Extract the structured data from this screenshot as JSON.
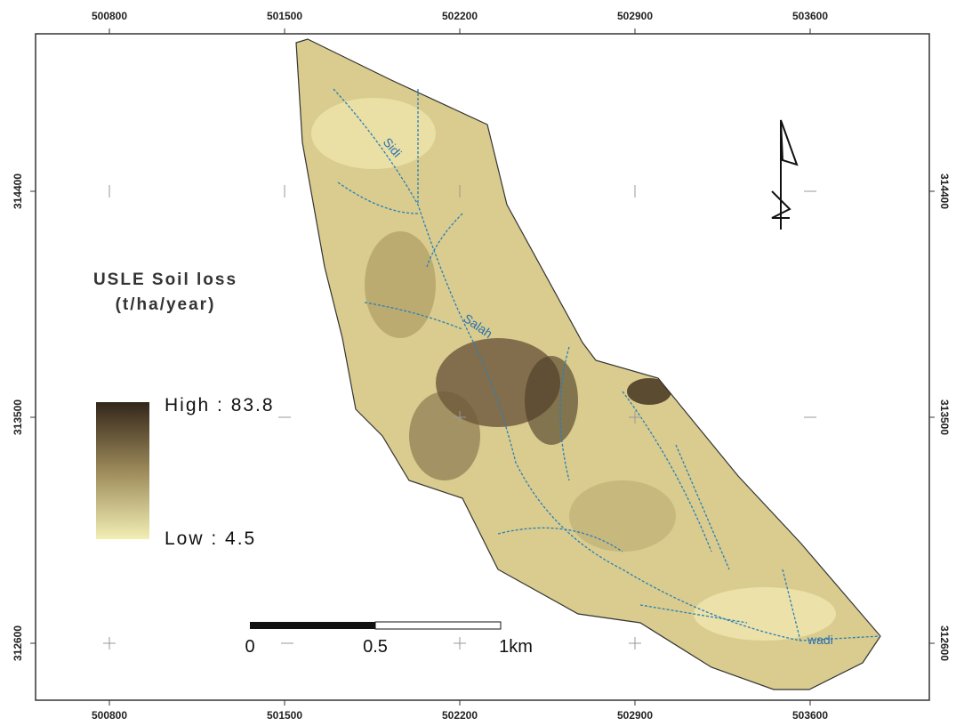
{
  "map": {
    "x_ticks": [
      "500800",
      "501500",
      "502200",
      "502900",
      "503600"
    ],
    "y_ticks": [
      "314400",
      "313500",
      "312600"
    ],
    "legend": {
      "title": [
        "USLE Soil loss",
        "(t/ha/year)"
      ],
      "high": "High : 83.8",
      "low": "Low : 4.5"
    },
    "scale_bar": {
      "labels": [
        "0",
        "0.5",
        "1km"
      ]
    },
    "stream_labels": [
      "Sidi",
      "Salah",
      "wadi"
    ]
  }
}
